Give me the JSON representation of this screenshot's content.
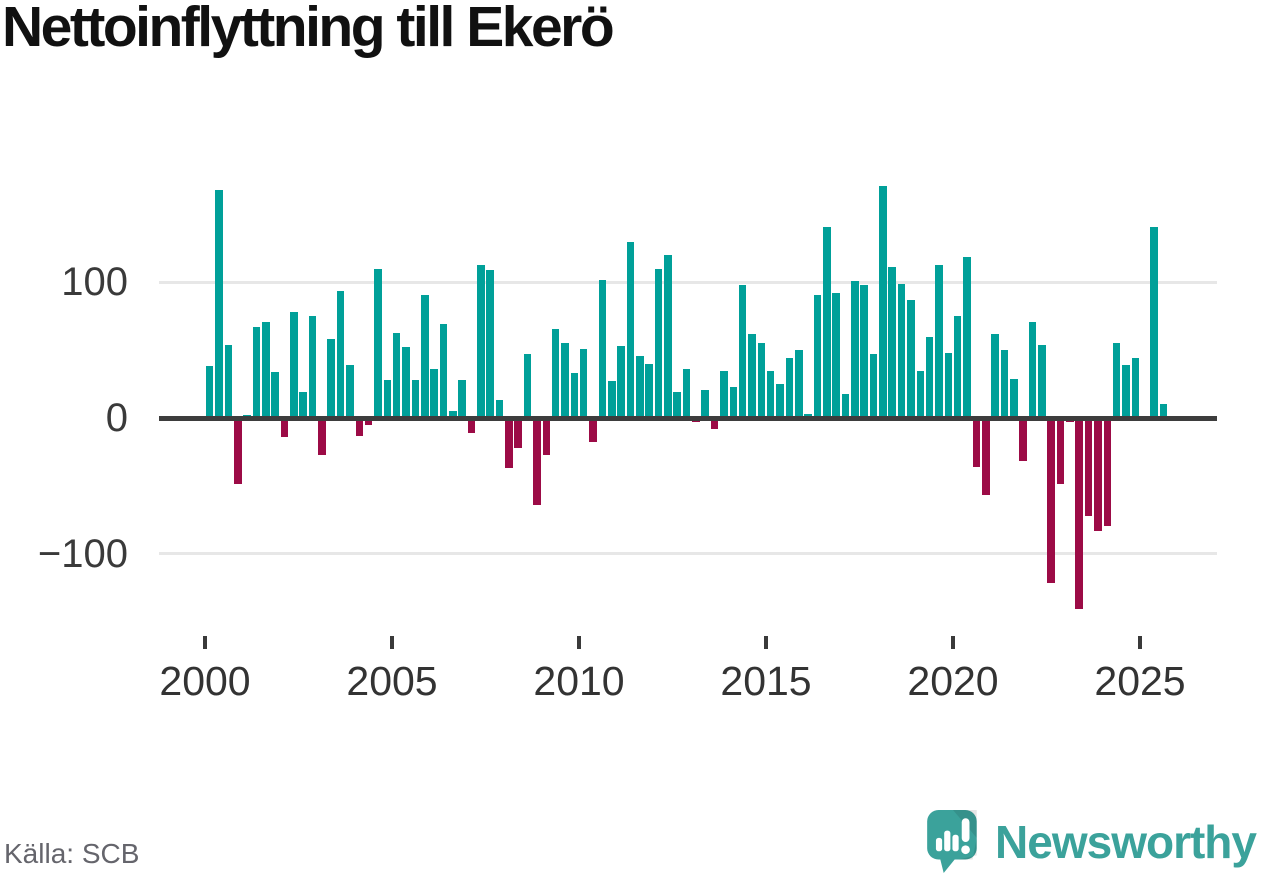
{
  "title": "Nettoinflyttning till Ekerö",
  "source": "Källa: SCB",
  "branding": {
    "name": "Newsworthy",
    "icon": "speech-bubble-bar-chart-icon"
  },
  "colors": {
    "positive_bar": "#00a099",
    "negative_bar": "#9c0b46",
    "axis_line": "#3d3d3d",
    "gridline": "#e7e7e7",
    "tick_text": "#3a3a3a",
    "title_text": "#111111",
    "source_text": "#65656c",
    "brand_teal": "#3ba29b"
  },
  "chart_data": {
    "type": "bar",
    "title": "Nettoinflyttning till Ekerö",
    "xlabel": "",
    "ylabel": "",
    "x_unit": "quarter",
    "start_year": 2000,
    "start_quarter": 1,
    "grid": "horizontal",
    "legend": "none",
    "ylim": [
      -150,
      180
    ],
    "y_ticks": [
      100,
      0,
      -100
    ],
    "y_tick_labels": [
      "100",
      "0",
      "−100"
    ],
    "x_tick_years": [
      2000,
      2005,
      2010,
      2015,
      2020,
      2025
    ],
    "x_tick_labels": [
      "2000",
      "2005",
      "2010",
      "2015",
      "2020",
      "2025"
    ],
    "values": [
      38,
      168,
      54,
      -49,
      2,
      67,
      71,
      34,
      -14,
      78,
      19,
      75,
      -27,
      58,
      94,
      39,
      -13,
      -5,
      110,
      28,
      63,
      52,
      28,
      91,
      36,
      69,
      5,
      28,
      -11,
      113,
      109,
      13,
      -37,
      -22,
      47,
      -64,
      -27,
      66,
      55,
      33,
      51,
      -18,
      102,
      27,
      53,
      130,
      46,
      40,
      110,
      120,
      19,
      36,
      -3,
      21,
      -8,
      35,
      23,
      98,
      62,
      55,
      35,
      25,
      44,
      50,
      3,
      91,
      141,
      92,
      18,
      101,
      98,
      47,
      171,
      111,
      99,
      87,
      35,
      60,
      113,
      48,
      75,
      119,
      -36,
      -57,
      62,
      50,
      29,
      -32,
      71,
      54,
      -122,
      -49,
      -3,
      -141,
      -72,
      -83,
      -80,
      55,
      39,
      44,
      0,
      141,
      10
    ]
  }
}
